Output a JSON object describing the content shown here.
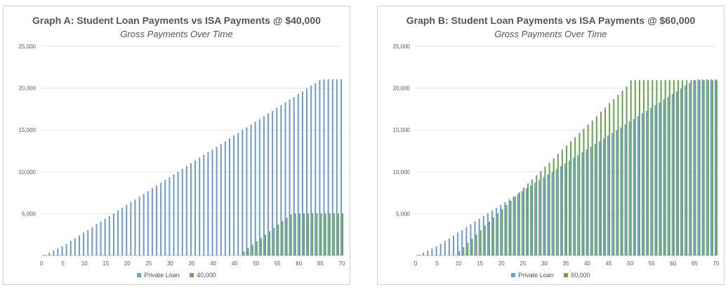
{
  "chart_data": [
    {
      "type": "bar",
      "title": "Graph A: Student Loan Payments vs ISA Payments @ $40,000",
      "subtitle": "Gross Payments Over Time",
      "xlabel": "",
      "ylabel": "",
      "ylim": [
        0,
        25000
      ],
      "yticks": [
        "25,000",
        "20,000",
        "15,000",
        "10,000",
        "5,000",
        ""
      ],
      "xticks": [
        "0",
        "5",
        "10",
        "15",
        "20",
        "25",
        "30",
        "35",
        "40",
        "45",
        "50",
        "55",
        "60",
        "65",
        "70"
      ],
      "grid": true,
      "legend_position": "bottom",
      "colors": {
        "series1": "#6f9fd0",
        "series2": "#6aa84f"
      },
      "series": [
        {
          "name": "Private Loan",
          "x": [
            1,
            2,
            3,
            4,
            5,
            6,
            7,
            8,
            9,
            10,
            11,
            12,
            13,
            14,
            15,
            16,
            17,
            18,
            19,
            20,
            21,
            22,
            23,
            24,
            25,
            26,
            27,
            28,
            29,
            30,
            31,
            32,
            33,
            34,
            35,
            36,
            37,
            38,
            39,
            40,
            41,
            42,
            43,
            44,
            45,
            46,
            47,
            48,
            49,
            50,
            51,
            52,
            53,
            54,
            55,
            56,
            57,
            58,
            59,
            60,
            61,
            62,
            63,
            64,
            65,
            66,
            67,
            68,
            69,
            70
          ],
          "values": [
            100,
            350,
            600,
            850,
            1100,
            1400,
            1750,
            2050,
            2400,
            2750,
            3050,
            3400,
            3750,
            4050,
            4400,
            4700,
            5050,
            5400,
            5700,
            6050,
            6400,
            6700,
            7050,
            7350,
            7700,
            8050,
            8350,
            8700,
            9050,
            9350,
            9700,
            10000,
            10350,
            10700,
            11000,
            11350,
            11700,
            12000,
            12350,
            12650,
            13000,
            13350,
            13650,
            14000,
            14350,
            14650,
            15000,
            15300,
            15650,
            16000,
            16300,
            16650,
            17000,
            17300,
            17650,
            17950,
            18300,
            18650,
            18950,
            19300,
            19600,
            19950,
            20300,
            20600,
            20950,
            21050,
            21050,
            21050,
            21050,
            21050
          ]
        },
        {
          "name": "40,000",
          "x": [
            47,
            48,
            49,
            50,
            51,
            52,
            53,
            54,
            55,
            56,
            57,
            58,
            59,
            60,
            61,
            62,
            63,
            64,
            65,
            66,
            67,
            68,
            69,
            70
          ],
          "values": [
            500,
            900,
            1300,
            1700,
            2100,
            2500,
            2900,
            3300,
            3700,
            4100,
            4500,
            4900,
            5050,
            5050,
            5050,
            5050,
            5050,
            5050,
            5050,
            5050,
            5050,
            5050,
            5050,
            5050
          ]
        }
      ]
    },
    {
      "type": "bar",
      "title": "Graph B: Student Loan Payments vs ISA Payments @ $60,000",
      "subtitle": "Gross Payments Over Time",
      "xlabel": "",
      "ylabel": "",
      "ylim": [
        0,
        25000
      ],
      "yticks": [
        "25,000",
        "20,000",
        "15,000",
        "10,000",
        "5,000",
        ""
      ],
      "xticks": [
        "0",
        "5",
        "10",
        "15",
        "20",
        "25",
        "30",
        "35",
        "40",
        "45",
        "50",
        "55",
        "60",
        "65",
        "70"
      ],
      "grid": true,
      "legend_position": "bottom",
      "colors": {
        "series1": "#6f9fd0",
        "series2": "#6aa84f"
      },
      "series": [
        {
          "name": "Private Loan",
          "x": [
            1,
            2,
            3,
            4,
            5,
            6,
            7,
            8,
            9,
            10,
            11,
            12,
            13,
            14,
            15,
            16,
            17,
            18,
            19,
            20,
            21,
            22,
            23,
            24,
            25,
            26,
            27,
            28,
            29,
            30,
            31,
            32,
            33,
            34,
            35,
            36,
            37,
            38,
            39,
            40,
            41,
            42,
            43,
            44,
            45,
            46,
            47,
            48,
            49,
            50,
            51,
            52,
            53,
            54,
            55,
            56,
            57,
            58,
            59,
            60,
            61,
            62,
            63,
            64,
            65,
            66,
            67,
            68,
            69,
            70
          ],
          "values": [
            100,
            350,
            600,
            850,
            1100,
            1400,
            1750,
            2050,
            2400,
            2750,
            3050,
            3400,
            3750,
            4050,
            4400,
            4700,
            5050,
            5400,
            5700,
            6050,
            6400,
            6700,
            7050,
            7350,
            7700,
            8050,
            8350,
            8700,
            9050,
            9350,
            9700,
            10000,
            10350,
            10700,
            11000,
            11350,
            11700,
            12000,
            12350,
            12650,
            13000,
            13350,
            13650,
            14000,
            14350,
            14650,
            15000,
            15300,
            15650,
            16000,
            16300,
            16650,
            17000,
            17300,
            17650,
            17950,
            18300,
            18650,
            18950,
            19300,
            19600,
            19950,
            20300,
            20600,
            20950,
            21050,
            21050,
            21050,
            21050,
            21050
          ]
        },
        {
          "name": "60,000",
          "x": [
            10,
            11,
            12,
            13,
            14,
            15,
            16,
            17,
            18,
            19,
            20,
            21,
            22,
            23,
            24,
            25,
            26,
            27,
            28,
            29,
            30,
            31,
            32,
            33,
            34,
            35,
            36,
            37,
            38,
            39,
            40,
            41,
            42,
            43,
            44,
            45,
            46,
            47,
            48,
            49,
            50,
            51,
            52,
            53,
            54,
            55,
            56,
            57,
            58,
            59,
            60,
            61,
            62,
            63,
            64,
            65,
            66,
            67,
            68,
            69,
            70
          ],
          "values": [
            500,
            1000,
            1500,
            2000,
            2500,
            3000,
            3550,
            4050,
            4550,
            5050,
            5550,
            6050,
            6550,
            7050,
            7550,
            8100,
            8600,
            9100,
            9600,
            10100,
            10600,
            11100,
            11600,
            12150,
            12650,
            13150,
            13650,
            14150,
            14650,
            15150,
            15650,
            16150,
            16650,
            17200,
            17700,
            18200,
            18700,
            19200,
            19700,
            20200,
            20950,
            20950,
            20950,
            20950,
            20950,
            20950,
            20950,
            20950,
            20950,
            20950,
            20950,
            20950,
            20950,
            20950,
            20950,
            20950,
            20950,
            20950,
            20950,
            20950,
            20950
          ]
        }
      ]
    }
  ]
}
